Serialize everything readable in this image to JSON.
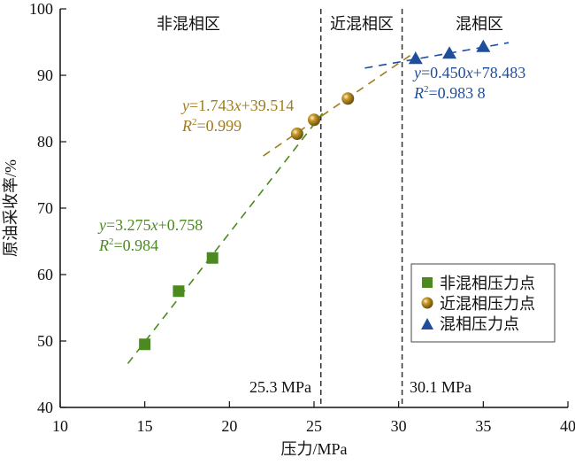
{
  "chart_data": {
    "type": "scatter",
    "title": "",
    "xlabel": "压力/MPa",
    "ylabel": "原油采收率/%",
    "xlim": [
      10,
      40
    ],
    "ylim": [
      40,
      100
    ],
    "xticks": [
      "10",
      "15",
      "20",
      "25",
      "30",
      "35",
      "40"
    ],
    "yticks": [
      "40",
      "50",
      "60",
      "70",
      "80",
      "90",
      "100"
    ],
    "grid": false,
    "legend_position": "right-middle",
    "regions": [
      {
        "label": "非混相区"
      },
      {
        "label": "近混相区"
      },
      {
        "label": "混相区"
      }
    ],
    "vlines": [
      {
        "x": 25.3,
        "label": "25.3 MPa"
      },
      {
        "x": 30.1,
        "label": "30.1 MPa"
      }
    ],
    "series": [
      {
        "name": "非混相压力点",
        "marker": "square",
        "color": "#4a8a1e",
        "x": [
          15,
          17,
          19
        ],
        "y": [
          49.5,
          57.5,
          62.5
        ],
        "fit": {
          "slope": 3.275,
          "intercept": 0.758,
          "x_range": [
            14,
            25.5
          ]
        },
        "equation": {
          "y_label": "y",
          "eq_text": "=3.275",
          "x_label": "x",
          "rest_text": "+0.758",
          "r_label": "R",
          "r2_text": "=0.984"
        }
      },
      {
        "name": "近混相压力点",
        "marker": "sphere",
        "color": "#a07c1c",
        "x": [
          24,
          25,
          27
        ],
        "y": [
          81.2,
          83.3,
          86.5
        ],
        "fit": {
          "slope": 1.743,
          "intercept": 39.514,
          "x_range": [
            22,
            31
          ]
        },
        "equation": {
          "y_label": "y",
          "eq_text": "=1.743",
          "x_label": "x",
          "rest_text": "+39.514",
          "r_label": "R",
          "r2_text": "=0.999"
        }
      },
      {
        "name": "混相压力点",
        "marker": "triangle",
        "color": "#1f4e9c",
        "x": [
          31,
          33,
          35
        ],
        "y": [
          92.5,
          93.3,
          94.3
        ],
        "fit": {
          "slope": 0.45,
          "intercept": 78.483,
          "x_range": [
            28,
            36.5
          ]
        },
        "equation": {
          "y_label": "y",
          "eq_text": "=0.450",
          "x_label": "x",
          "rest_text": "+78.483",
          "r_label": "R",
          "r2_text": "=0.983 8"
        }
      }
    ]
  }
}
